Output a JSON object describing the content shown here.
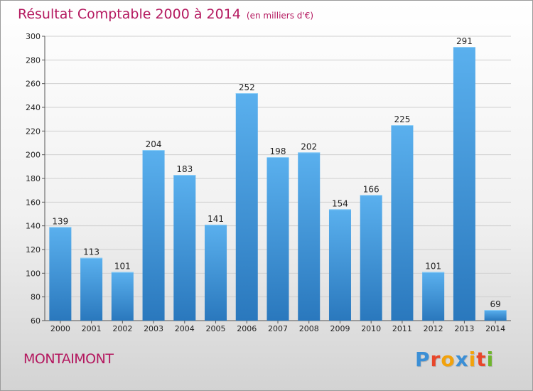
{
  "header": {
    "title": "Résultat Comptable 2000 à 2014",
    "subtitle": "(en milliers d'€)"
  },
  "footer": {
    "commune": "MONTAIMONT",
    "logo": "Proxiti",
    "logo_colors": [
      "#3b8fd6",
      "#e8462a",
      "#f2a20c",
      "#3b8fd6",
      "#f2a20c",
      "#e8462a",
      "#6fb52c"
    ]
  },
  "colors": {
    "bar_light": "#5ab0ee",
    "bar_dark": "#2a78bd",
    "grid": "#cfcfcf",
    "text_accent": "#b4185f"
  },
  "chart_data": {
    "type": "bar",
    "categories": [
      "2000",
      "2001",
      "2002",
      "2003",
      "2004",
      "2005",
      "2006",
      "2007",
      "2008",
      "2009",
      "2010",
      "2011",
      "2012",
      "2013",
      "2014"
    ],
    "values": [
      139,
      113,
      101,
      204,
      183,
      141,
      252,
      198,
      202,
      154,
      166,
      225,
      101,
      291,
      69
    ],
    "ylim": [
      60,
      300
    ],
    "yticks": [
      60,
      80,
      100,
      120,
      140,
      160,
      180,
      200,
      220,
      240,
      260,
      280,
      300
    ],
    "grid": true,
    "xlabel": "",
    "ylabel": ""
  }
}
